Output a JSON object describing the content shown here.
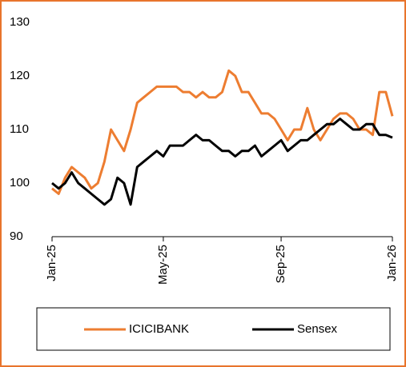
{
  "chart_data": {
    "type": "line",
    "categories": [
      "Jan-25",
      null,
      null,
      null,
      null,
      null,
      null,
      null,
      null,
      null,
      null,
      null,
      null,
      null,
      null,
      null,
      null,
      "May-25",
      null,
      null,
      null,
      null,
      null,
      null,
      null,
      null,
      null,
      null,
      null,
      null,
      null,
      null,
      null,
      null,
      null,
      "Sep-25",
      null,
      null,
      null,
      null,
      null,
      null,
      null,
      null,
      null,
      null,
      null,
      null,
      null,
      null,
      null,
      null,
      "Jan-26"
    ],
    "series": [
      {
        "name": "ICICIBANK",
        "color": "#ed7d31",
        "values": [
          99,
          98,
          101,
          103,
          102,
          101,
          99,
          100,
          104,
          110,
          108,
          106,
          110,
          115,
          116,
          117,
          118,
          118,
          118,
          118,
          117,
          117,
          116,
          117,
          116,
          116,
          117,
          121,
          120,
          117,
          117,
          115,
          113,
          113,
          112,
          110,
          108,
          110,
          110,
          114,
          110,
          108,
          110,
          112,
          113,
          113,
          112,
          110,
          110,
          109,
          117,
          117,
          112.5
        ]
      },
      {
        "name": "Sensex",
        "color": "#000000",
        "values": [
          100,
          99,
          100,
          102,
          100,
          99,
          98,
          97,
          96,
          97,
          101,
          100,
          96,
          103,
          104,
          105,
          106,
          105,
          107,
          107,
          107,
          108,
          109,
          108,
          108,
          107,
          106,
          106,
          105,
          106,
          106,
          107,
          105,
          106,
          107,
          108,
          106,
          107,
          108,
          108,
          109,
          110,
          111,
          111,
          112,
          111,
          110,
          110,
          111,
          111,
          109,
          109,
          108.5
        ]
      }
    ],
    "ylim": [
      90,
      130
    ],
    "yticks": [
      90,
      100,
      110,
      120,
      130
    ]
  }
}
